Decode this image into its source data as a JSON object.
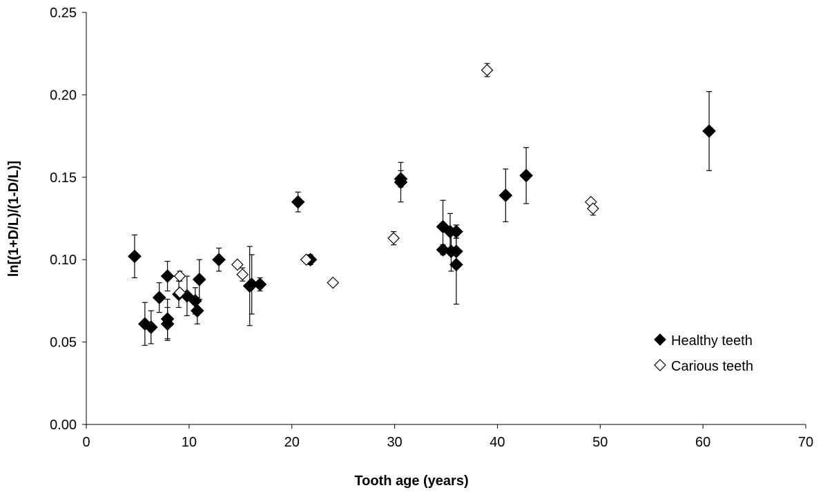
{
  "chart_data": {
    "type": "scatter",
    "xlabel": "Tooth age (years)",
    "ylabel": "ln[(1+D/L)/(1-D/L)]",
    "xlim": [
      0,
      70
    ],
    "xticks": [
      0,
      10,
      20,
      30,
      40,
      50,
      60,
      70
    ],
    "ylim": [
      0,
      0.25
    ],
    "yticks": [
      {
        "value": 0,
        "label": "0.00"
      },
      {
        "value": 0.05,
        "label": "0.05"
      },
      {
        "value": 0.1,
        "label": "0.10"
      },
      {
        "value": 0.15,
        "label": "0.15"
      },
      {
        "value": 0.2,
        "label": "0.20"
      },
      {
        "value": 0.25,
        "label": "0.25"
      }
    ],
    "legend": "lower right",
    "series": [
      {
        "name": "Healthy teeth",
        "color": "#000000",
        "filled": true,
        "x": [
          4.7,
          5.7,
          6.3,
          7.1,
          7.9,
          7.9,
          7.9,
          9.0,
          9.8,
          10.6,
          10.8,
          11.0,
          12.9,
          15.9,
          16.1,
          16.9,
          20.6,
          21.8,
          30.6,
          30.6,
          34.7,
          34.7,
          35.5,
          35.4,
          36.0,
          36.0,
          36.0,
          40.8,
          42.8,
          60.6
        ],
        "values": [
          0.102,
          0.061,
          0.059,
          0.077,
          0.09,
          0.064,
          0.061,
          0.079,
          0.078,
          0.075,
          0.069,
          0.088,
          0.1,
          0.084,
          0.085,
          0.085,
          0.135,
          0.1,
          0.149,
          0.147,
          0.12,
          0.106,
          0.105,
          0.117,
          0.117,
          0.105,
          0.097,
          0.139,
          0.151,
          0.178
        ],
        "errors": [
          0.013,
          0.013,
          0.01,
          0.009,
          0.009,
          0.012,
          0.01,
          0.008,
          0.012,
          0.008,
          0.008,
          0.012,
          0.007,
          0.024,
          0.018,
          0.004,
          0.006,
          0.003,
          0.005,
          0.012,
          0.016,
          0.003,
          0.012,
          0.011,
          0.004,
          0.008,
          0.024,
          0.016,
          0.017,
          0.024
        ]
      },
      {
        "name": "Carious teeth",
        "color": "#000000",
        "filled": false,
        "x": [
          9.1,
          9.1,
          14.7,
          15.2,
          21.4,
          24.0,
          29.9,
          39.0,
          49.1,
          49.3
        ],
        "values": [
          0.09,
          0.08,
          0.097,
          0.091,
          0.1,
          0.086,
          0.113,
          0.215,
          0.135,
          0.131
        ],
        "errors": [
          0.003,
          null,
          null,
          0.004,
          null,
          null,
          0.004,
          0.004,
          null,
          0.004
        ]
      }
    ]
  }
}
